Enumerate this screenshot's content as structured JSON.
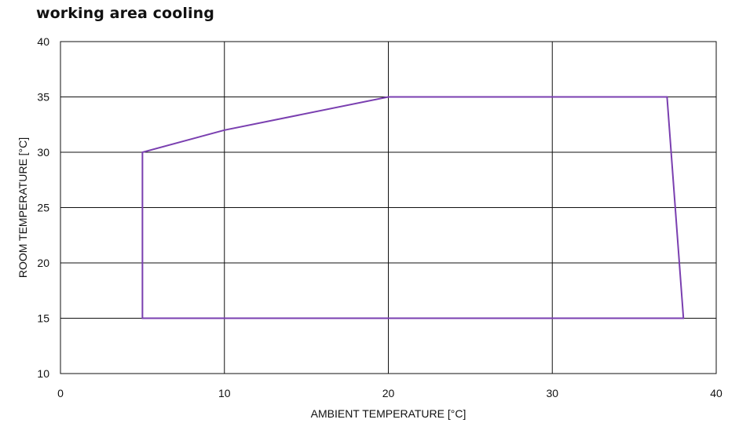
{
  "chart_data": {
    "type": "line",
    "title": "working area cooling",
    "xlabel": "AMBIENT TEMPERATURE [°C]",
    "ylabel": "ROOM TEMPERATURE [°C]",
    "xlim": [
      0,
      40
    ],
    "ylim": [
      10,
      40
    ],
    "x_ticks": [
      0,
      10,
      20,
      30,
      40
    ],
    "y_ticks": [
      10,
      15,
      20,
      25,
      30,
      35,
      40
    ],
    "grid": true,
    "series": [
      {
        "color": "#7a3fb0",
        "closed": true,
        "points": [
          {
            "x": 5,
            "y": 15
          },
          {
            "x": 5,
            "y": 30
          },
          {
            "x": 10,
            "y": 32
          },
          {
            "x": 20,
            "y": 35
          },
          {
            "x": 37,
            "y": 35
          },
          {
            "x": 38,
            "y": 15
          }
        ]
      }
    ]
  }
}
